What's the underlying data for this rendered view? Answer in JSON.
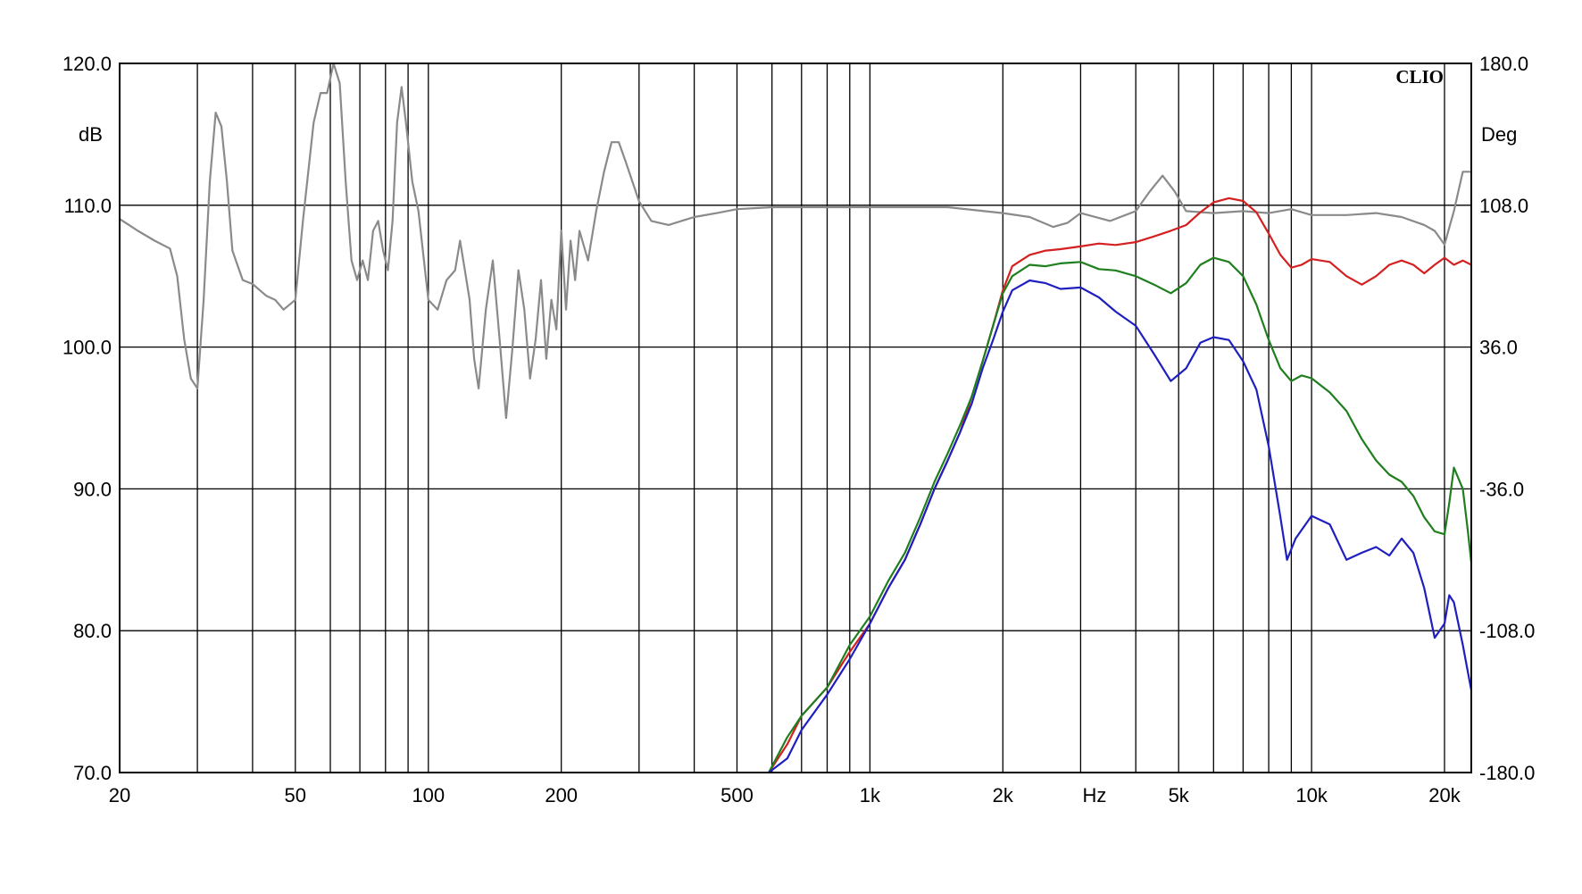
{
  "chart_data": {
    "type": "line",
    "brand": "CLIO",
    "xlabel": "Hz",
    "x_scale": "log",
    "xlim": [
      20,
      23000
    ],
    "x_major_ticks": [
      20,
      50,
      100,
      200,
      500,
      1000,
      2000,
      5000,
      10000,
      20000
    ],
    "x_tick_labels": [
      "20",
      "50",
      "100",
      "200",
      "500",
      "1k",
      "2k",
      "5k",
      "10k",
      "20k"
    ],
    "x_minor_grid": [
      30,
      40,
      60,
      70,
      80,
      90,
      300,
      400,
      600,
      700,
      800,
      900,
      3000,
      4000,
      6000,
      7000,
      8000,
      9000
    ],
    "y_left": {
      "label": "dB",
      "ylim": [
        70,
        120
      ],
      "ticks": [
        70,
        80,
        90,
        100,
        110,
        120
      ],
      "tick_labels": [
        "70.0",
        "80.0",
        "90.0",
        "100.0",
        "110.0",
        "120.0"
      ]
    },
    "y_right": {
      "label": "Deg",
      "ylim": [
        -180,
        180
      ],
      "ticks": [
        -180,
        -108,
        -36,
        36,
        108,
        180
      ],
      "tick_labels": [
        "-180.0",
        "-108.0",
        "-36.0",
        "36.0",
        "108.0",
        "180.0"
      ]
    },
    "grid": true,
    "colors": {
      "red": "#d42020",
      "green": "#1f7f1f",
      "blue": "#1f1fbf",
      "gray": "#8a8a8a"
    },
    "series": [
      {
        "color": "red",
        "axis": "left",
        "points": [
          [
            590,
            70
          ],
          [
            650,
            72
          ],
          [
            700,
            74
          ],
          [
            800,
            76
          ],
          [
            900,
            78.5
          ],
          [
            1000,
            80.5
          ],
          [
            1100,
            83
          ],
          [
            1200,
            85
          ],
          [
            1300,
            87.5
          ],
          [
            1400,
            90
          ],
          [
            1500,
            92
          ],
          [
            1600,
            94
          ],
          [
            1700,
            96.5
          ],
          [
            1800,
            99
          ],
          [
            1900,
            101.5
          ],
          [
            2000,
            104
          ],
          [
            2100,
            105.7
          ],
          [
            2300,
            106.5
          ],
          [
            2500,
            106.8
          ],
          [
            2700,
            106.9
          ],
          [
            3000,
            107.1
          ],
          [
            3300,
            107.3
          ],
          [
            3600,
            107.2
          ],
          [
            4000,
            107.4
          ],
          [
            4400,
            107.8
          ],
          [
            4800,
            108.2
          ],
          [
            5200,
            108.6
          ],
          [
            5600,
            109.5
          ],
          [
            6000,
            110.2
          ],
          [
            6500,
            110.5
          ],
          [
            7000,
            110.3
          ],
          [
            7500,
            109.5
          ],
          [
            8000,
            108
          ],
          [
            8500,
            106.5
          ],
          [
            9000,
            105.6
          ],
          [
            9500,
            105.8
          ],
          [
            10000,
            106.2
          ],
          [
            11000,
            106
          ],
          [
            12000,
            105
          ],
          [
            13000,
            104.4
          ],
          [
            14000,
            105
          ],
          [
            15000,
            105.8
          ],
          [
            16000,
            106.1
          ],
          [
            17000,
            105.8
          ],
          [
            18000,
            105.2
          ],
          [
            19000,
            105.8
          ],
          [
            20000,
            106.3
          ],
          [
            21000,
            105.8
          ],
          [
            22000,
            106.1
          ],
          [
            23000,
            105.8
          ]
        ]
      },
      {
        "color": "green",
        "axis": "left",
        "points": [
          [
            590,
            70
          ],
          [
            650,
            72.5
          ],
          [
            700,
            74
          ],
          [
            800,
            76
          ],
          [
            900,
            79
          ],
          [
            1000,
            81
          ],
          [
            1100,
            83.5
          ],
          [
            1200,
            85.5
          ],
          [
            1300,
            88
          ],
          [
            1400,
            90.5
          ],
          [
            1500,
            92.5
          ],
          [
            1600,
            94.5
          ],
          [
            1700,
            96.5
          ],
          [
            1800,
            99
          ],
          [
            1900,
            101.5
          ],
          [
            2000,
            103.8
          ],
          [
            2100,
            105
          ],
          [
            2300,
            105.8
          ],
          [
            2500,
            105.7
          ],
          [
            2700,
            105.9
          ],
          [
            3000,
            106
          ],
          [
            3300,
            105.5
          ],
          [
            3600,
            105.4
          ],
          [
            4000,
            105
          ],
          [
            4400,
            104.4
          ],
          [
            4800,
            103.8
          ],
          [
            5200,
            104.5
          ],
          [
            5600,
            105.8
          ],
          [
            6000,
            106.3
          ],
          [
            6500,
            106
          ],
          [
            7000,
            105
          ],
          [
            7500,
            103
          ],
          [
            8000,
            100.5
          ],
          [
            8500,
            98.5
          ],
          [
            9000,
            97.6
          ],
          [
            9500,
            98
          ],
          [
            10000,
            97.8
          ],
          [
            11000,
            96.8
          ],
          [
            12000,
            95.5
          ],
          [
            13000,
            93.5
          ],
          [
            14000,
            92
          ],
          [
            15000,
            91
          ],
          [
            16000,
            90.5
          ],
          [
            17000,
            89.5
          ],
          [
            18000,
            88
          ],
          [
            19000,
            87
          ],
          [
            20000,
            86.8
          ],
          [
            20500,
            89
          ],
          [
            21000,
            91.5
          ],
          [
            22000,
            90
          ],
          [
            22600,
            87
          ],
          [
            23000,
            84.8
          ]
        ]
      },
      {
        "color": "blue",
        "axis": "left",
        "points": [
          [
            590,
            70
          ],
          [
            650,
            71
          ],
          [
            700,
            73
          ],
          [
            800,
            75.5
          ],
          [
            900,
            78
          ],
          [
            1000,
            80.5
          ],
          [
            1100,
            83
          ],
          [
            1200,
            85
          ],
          [
            1300,
            87.5
          ],
          [
            1400,
            90
          ],
          [
            1500,
            92
          ],
          [
            1600,
            94
          ],
          [
            1700,
            96
          ],
          [
            1800,
            98.5
          ],
          [
            1900,
            100.5
          ],
          [
            2000,
            102.5
          ],
          [
            2100,
            104
          ],
          [
            2300,
            104.7
          ],
          [
            2500,
            104.5
          ],
          [
            2700,
            104.1
          ],
          [
            3000,
            104.2
          ],
          [
            3300,
            103.5
          ],
          [
            3600,
            102.5
          ],
          [
            4000,
            101.5
          ],
          [
            4400,
            99.5
          ],
          [
            4800,
            97.6
          ],
          [
            5200,
            98.5
          ],
          [
            5600,
            100.3
          ],
          [
            6000,
            100.7
          ],
          [
            6500,
            100.5
          ],
          [
            7000,
            99
          ],
          [
            7500,
            97
          ],
          [
            8000,
            93
          ],
          [
            8500,
            88
          ],
          [
            8800,
            85
          ],
          [
            9200,
            86.5
          ],
          [
            10000,
            88.1
          ],
          [
            11000,
            87.5
          ],
          [
            12000,
            85
          ],
          [
            13000,
            85.5
          ],
          [
            14000,
            85.9
          ],
          [
            15000,
            85.3
          ],
          [
            16000,
            86.5
          ],
          [
            17000,
            85.5
          ],
          [
            18000,
            83
          ],
          [
            19000,
            79.5
          ],
          [
            20000,
            80.5
          ],
          [
            20500,
            82.5
          ],
          [
            21000,
            82
          ],
          [
            22000,
            79
          ],
          [
            23000,
            75.8
          ]
        ]
      },
      {
        "color": "gray",
        "axis": "right",
        "points": [
          [
            20,
            101
          ],
          [
            21,
            98
          ],
          [
            22,
            95
          ],
          [
            24,
            90
          ],
          [
            26,
            86
          ],
          [
            27,
            72
          ],
          [
            28,
            40
          ],
          [
            29,
            20
          ],
          [
            30,
            15
          ],
          [
            31,
            60
          ],
          [
            32,
            120
          ],
          [
            33,
            155
          ],
          [
            34,
            148
          ],
          [
            35,
            120
          ],
          [
            36,
            85
          ],
          [
            38,
            70
          ],
          [
            40,
            68
          ],
          [
            43,
            62
          ],
          [
            45,
            60
          ],
          [
            47,
            55
          ],
          [
            50,
            60
          ],
          [
            52,
            100
          ],
          [
            55,
            150
          ],
          [
            57,
            165
          ],
          [
            59,
            165
          ],
          [
            61,
            180
          ],
          [
            63,
            170
          ],
          [
            65,
            120
          ],
          [
            67,
            80
          ],
          [
            69,
            70
          ],
          [
            71,
            80
          ],
          [
            73,
            70
          ],
          [
            75,
            95
          ],
          [
            77,
            100
          ],
          [
            79,
            85
          ],
          [
            81,
            75
          ],
          [
            83,
            100
          ],
          [
            85,
            150
          ],
          [
            87,
            168
          ],
          [
            89,
            150
          ],
          [
            92,
            120
          ],
          [
            95,
            105
          ],
          [
            100,
            60
          ],
          [
            105,
            55
          ],
          [
            110,
            70
          ],
          [
            115,
            75
          ],
          [
            118,
            90
          ],
          [
            121,
            75
          ],
          [
            124,
            60
          ],
          [
            127,
            30
          ],
          [
            130,
            15
          ],
          [
            135,
            55
          ],
          [
            140,
            80
          ],
          [
            145,
            40
          ],
          [
            150,
            0
          ],
          [
            155,
            35
          ],
          [
            160,
            75
          ],
          [
            165,
            55
          ],
          [
            170,
            20
          ],
          [
            175,
            40
          ],
          [
            180,
            70
          ],
          [
            185,
            30
          ],
          [
            190,
            60
          ],
          [
            195,
            45
          ],
          [
            200,
            95
          ],
          [
            205,
            55
          ],
          [
            210,
            90
          ],
          [
            215,
            70
          ],
          [
            220,
            95
          ],
          [
            230,
            80
          ],
          [
            240,
            105
          ],
          [
            250,
            125
          ],
          [
            260,
            140
          ],
          [
            270,
            140
          ],
          [
            280,
            130
          ],
          [
            300,
            110
          ],
          [
            320,
            100
          ],
          [
            350,
            98
          ],
          [
            400,
            102
          ],
          [
            450,
            104
          ],
          [
            500,
            106
          ],
          [
            600,
            107
          ],
          [
            800,
            107
          ],
          [
            1000,
            107
          ],
          [
            1500,
            107
          ],
          [
            2000,
            104
          ],
          [
            2300,
            102
          ],
          [
            2600,
            97
          ],
          [
            2800,
            99
          ],
          [
            3000,
            104
          ],
          [
            3500,
            100
          ],
          [
            4000,
            105
          ],
          [
            4300,
            115
          ],
          [
            4600,
            123
          ],
          [
            4900,
            115
          ],
          [
            5200,
            105
          ],
          [
            6000,
            104
          ],
          [
            7000,
            105
          ],
          [
            8000,
            104
          ],
          [
            9000,
            106
          ],
          [
            10000,
            103
          ],
          [
            12000,
            103
          ],
          [
            14000,
            104
          ],
          [
            16000,
            102
          ],
          [
            18000,
            98
          ],
          [
            19000,
            95
          ],
          [
            20000,
            88
          ],
          [
            21000,
            105
          ],
          [
            22000,
            125
          ],
          [
            23000,
            125
          ]
        ]
      }
    ]
  }
}
